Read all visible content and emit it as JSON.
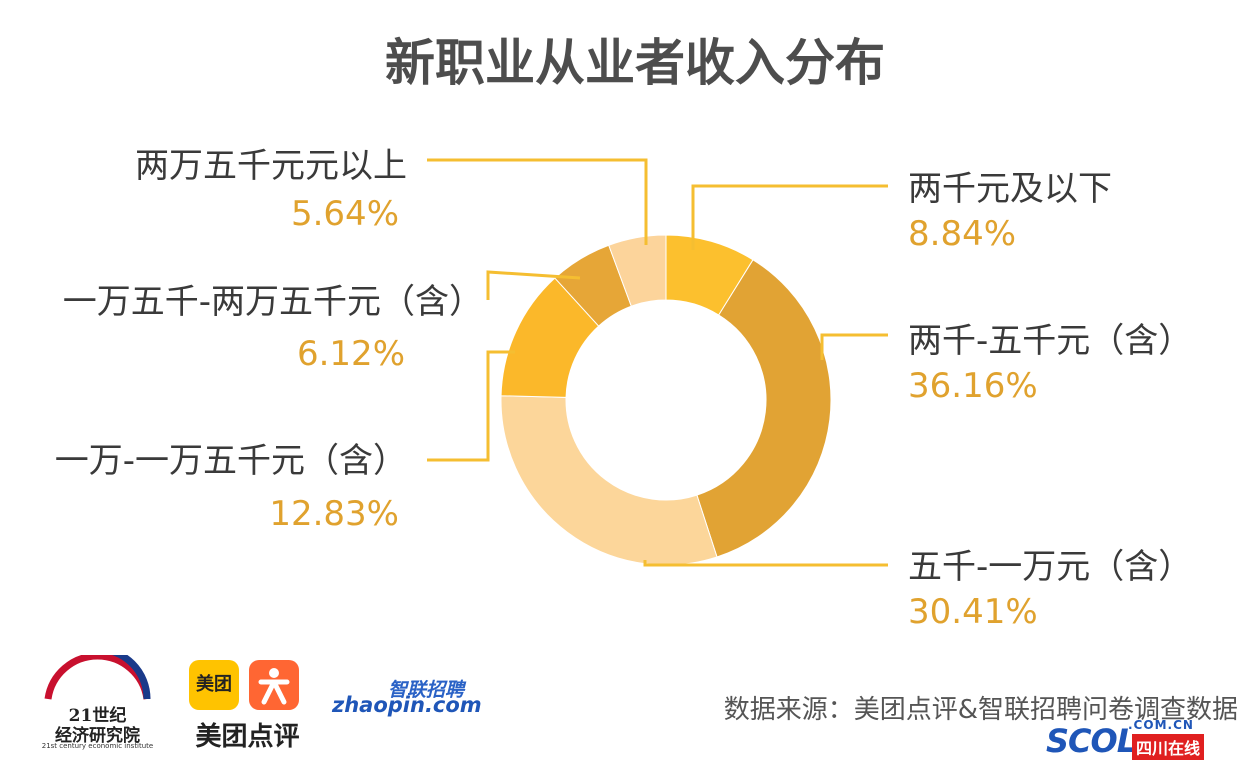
{
  "chart_data": {
    "type": "pie",
    "title": "新职业从业者收入分布",
    "categories": [
      "两千元及以下",
      "两千-五千元（含）",
      "五千-一万元（含）",
      "一万-一万五千元（含）",
      "一万五千-两万五千元（含）",
      "两万五千元元以上"
    ],
    "values": [
      8.84,
      36.16,
      30.41,
      12.83,
      6.12,
      5.64
    ],
    "value_labels": [
      "8.84%",
      "36.16%",
      "30.41%",
      "12.83%",
      "6.12%",
      "5.64%"
    ],
    "colors": [
      "#fcc02e",
      "#e1a334",
      "#fcd69a",
      "#fbb82a",
      "#e6a637",
      "#fcd49b"
    ],
    "donut": true,
    "legend": "none"
  },
  "source": "数据来源：美团点评&智联招聘问卷调查数据",
  "logos": {
    "institute_name_1": "21世纪",
    "institute_name_2": "经济研究院",
    "institute_sub": "21st century economic institute",
    "meituan_box": "美团",
    "meituan_name": "美团点评",
    "zhilian_cn": "智联招聘",
    "zhilian_en": "zhaopin.com",
    "scol_domain": ".COM.CN",
    "scol_mark": "SCOL",
    "scol_site": "四川在线"
  },
  "colors": {
    "title": "#4d4d4d",
    "percent": "#e0a22e",
    "leader": "#f5be31"
  }
}
